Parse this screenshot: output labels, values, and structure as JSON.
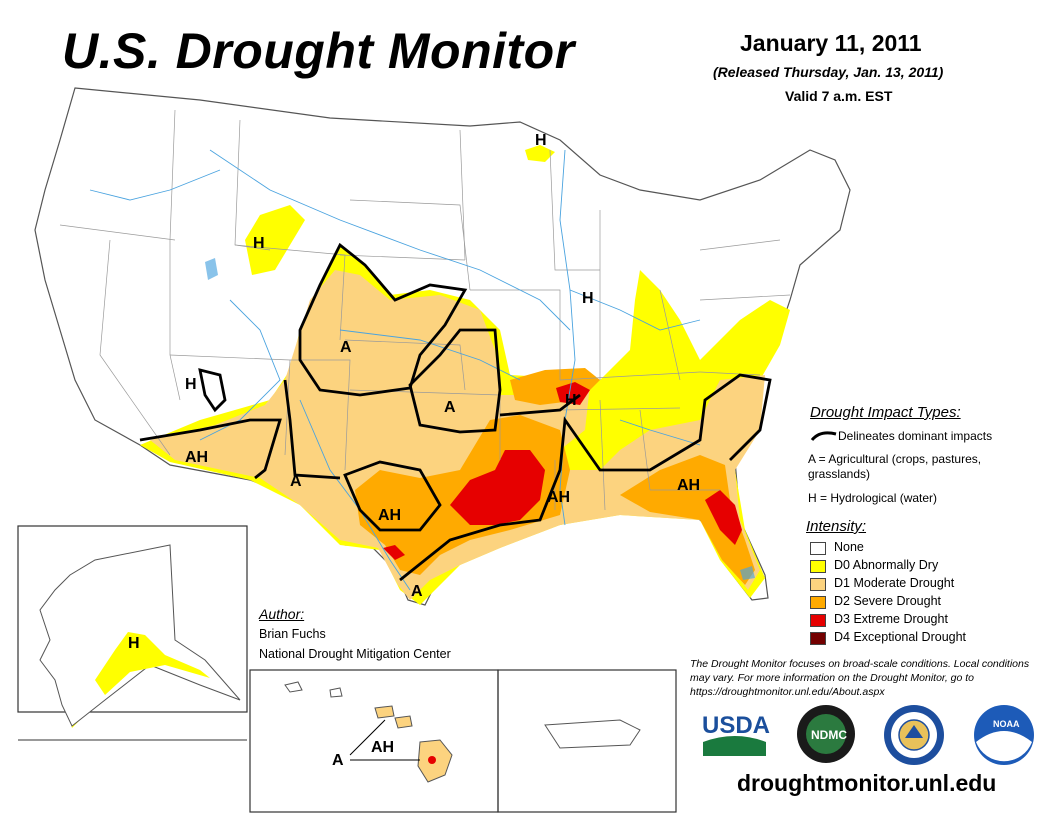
{
  "header": {
    "title": "U.S. Drought Monitor",
    "date": "January 11, 2011",
    "released": "(Released Thursday, Jan. 13, 2011)",
    "valid": "Valid 7 a.m. EST"
  },
  "impact_types": {
    "title": "Drought Impact Types:",
    "line_label": "Delineates dominant impacts",
    "agricultural": "A = Agricultural (crops, pastures, grasslands)",
    "hydrological": "H = Hydrological (water)"
  },
  "intensity": {
    "title": "Intensity:",
    "items": [
      {
        "label": "None",
        "color": "#ffffff"
      },
      {
        "label": "D0 Abnormally Dry",
        "color": "#ffff00"
      },
      {
        "label": "D1 Moderate Drought",
        "color": "#fcd37f"
      },
      {
        "label": "D2 Severe Drought",
        "color": "#ffaa00"
      },
      {
        "label": "D3 Extreme Drought",
        "color": "#e60000"
      },
      {
        "label": "D4 Exceptional Drought",
        "color": "#730000"
      }
    ]
  },
  "author": {
    "title": "Author:",
    "name": "Brian Fuchs",
    "organization": "National Drought Mitigation Center"
  },
  "note": "The Drought Monitor focuses on broad-scale conditions. Local conditions may vary. For more information on the Drought Monitor, go to https://droughtmonitor.unl.edu/About.aspx",
  "website": "droughtmonitor.unl.edu",
  "map_labels": {
    "conus": [
      "H",
      "H",
      "A",
      "A",
      "H",
      "AH",
      "A",
      "H",
      "AH",
      "AH",
      "AH",
      "A"
    ],
    "alaska": "H",
    "hawaii_a": "A",
    "hawaii_ah": "AH"
  },
  "logos": {
    "usda": "USDA",
    "ndmc": "NDMC",
    "ndmc_ring": "NATIONAL DROUGHT MITIGATION CENTER",
    "noaa": "NOAA"
  },
  "colors": {
    "d0": "#ffff00",
    "d1": "#fcd37f",
    "d2": "#ffaa00",
    "d3": "#e60000",
    "d4": "#730000",
    "river": "#4aa3df",
    "border": "#888888"
  }
}
